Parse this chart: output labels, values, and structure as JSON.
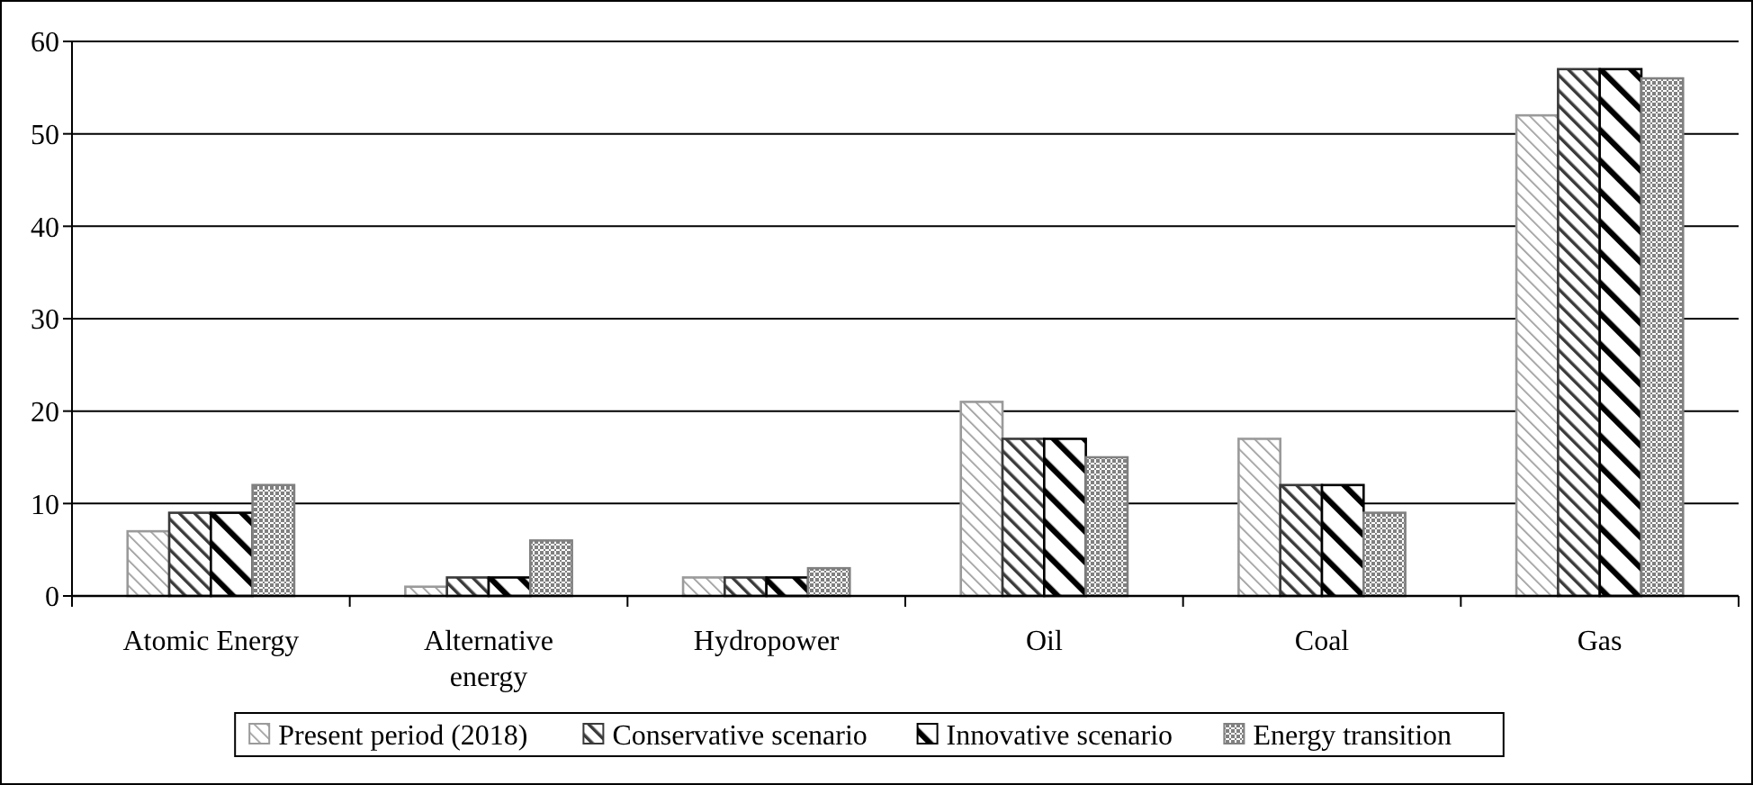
{
  "chart_data": {
    "type": "bar",
    "categories": [
      "Atomic Energy",
      "Alternative energy",
      "Hydropower",
      "Oil",
      "Coal",
      "Gas"
    ],
    "series": [
      {
        "name": "Present period (2018)",
        "color": "#9a9a9a",
        "values": [
          7,
          1,
          2,
          21,
          17,
          52
        ]
      },
      {
        "name": "Conservative scenario",
        "color": "#3a3a3a",
        "values": [
          9,
          2,
          2,
          17,
          12,
          57
        ]
      },
      {
        "name": "Innovative scenario",
        "color": "#000000",
        "values": [
          9,
          2,
          2,
          17,
          12,
          57
        ]
      },
      {
        "name": "Energy transition",
        "color": "#808080",
        "values": [
          12,
          6,
          3,
          15,
          9,
          56
        ]
      }
    ],
    "ylim": [
      0,
      60
    ],
    "yticks": [
      0,
      10,
      20,
      30,
      40,
      50,
      60
    ],
    "grid": "y",
    "legend": "bottom"
  }
}
